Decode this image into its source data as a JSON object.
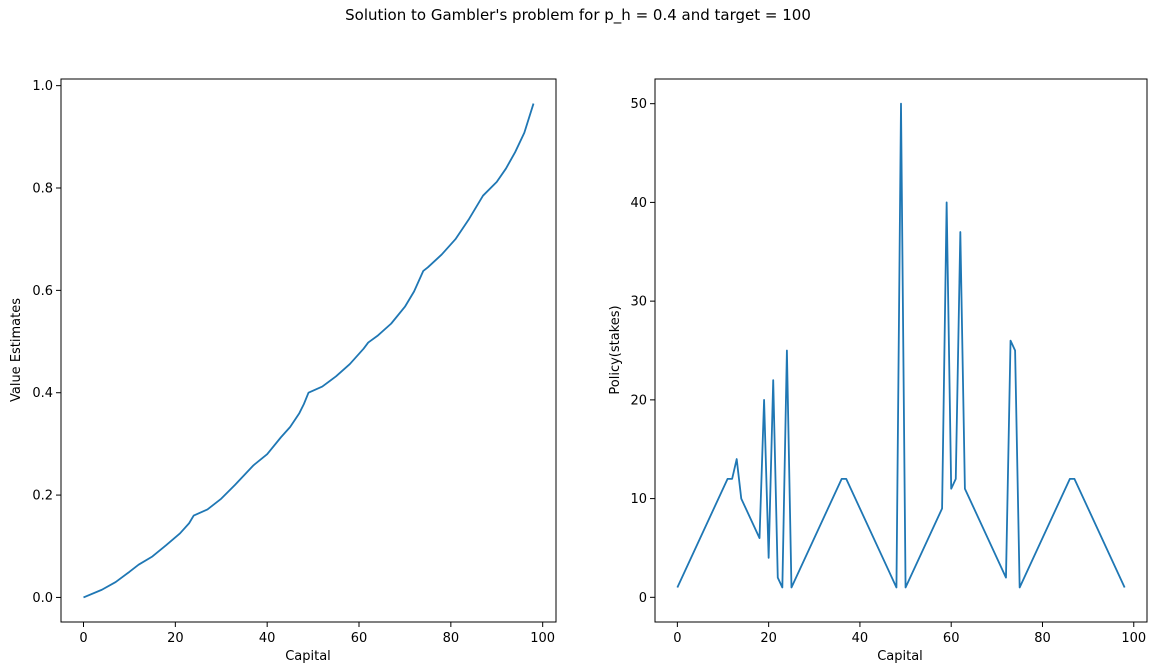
{
  "figure": {
    "suptitle": "Solution to Gambler's problem for p_h = 0.4 and target = 100"
  },
  "chart_data": [
    {
      "type": "line",
      "title": "",
      "xlabel": "Capital",
      "ylabel": "Value Estimates",
      "xlim": [
        -4.9,
        102.9
      ],
      "ylim": [
        -0.048,
        1.013
      ],
      "xticks": [
        0,
        20,
        40,
        60,
        80,
        100
      ],
      "yticks": [
        0.0,
        0.2,
        0.4,
        0.6,
        0.8,
        1.0
      ],
      "xtick_labels": [
        "0",
        "20",
        "40",
        "60",
        "80",
        "100"
      ],
      "ytick_labels": [
        "0.0",
        "0.2",
        "0.4",
        "0.6",
        "0.8",
        "1.0"
      ],
      "grid": false,
      "color": "#1f77b4",
      "x": [
        0,
        4,
        7,
        10,
        12,
        15,
        18,
        21,
        23,
        24,
        27,
        30,
        33,
        37,
        40,
        43,
        45,
        47,
        48,
        49,
        52,
        55,
        58,
        61,
        62,
        64,
        67,
        70,
        72,
        74,
        75,
        78,
        81,
        84,
        87,
        90,
        92,
        94,
        96,
        98
      ],
      "y": [
        0.0,
        0.015,
        0.03,
        0.05,
        0.064,
        0.08,
        0.102,
        0.125,
        0.145,
        0.16,
        0.172,
        0.193,
        0.22,
        0.258,
        0.28,
        0.313,
        0.333,
        0.36,
        0.378,
        0.4,
        0.412,
        0.432,
        0.456,
        0.486,
        0.498,
        0.511,
        0.535,
        0.568,
        0.598,
        0.638,
        0.645,
        0.67,
        0.7,
        0.74,
        0.785,
        0.812,
        0.838,
        0.87,
        0.908,
        0.965
      ]
    },
    {
      "type": "line",
      "title": "",
      "xlabel": "Capital",
      "ylabel": "Policy(stakes)",
      "xlim": [
        -4.9,
        102.9
      ],
      "ylim": [
        -2.5,
        52.5
      ],
      "xticks": [
        0,
        20,
        40,
        60,
        80,
        100
      ],
      "yticks": [
        0,
        10,
        20,
        30,
        40,
        50
      ],
      "xtick_labels": [
        "0",
        "20",
        "40",
        "60",
        "80",
        "100"
      ],
      "ytick_labels": [
        "0",
        "10",
        "20",
        "30",
        "40",
        "50"
      ],
      "grid": false,
      "color": "#1f77b4",
      "x": [
        0,
        11,
        12,
        13,
        14,
        18,
        19,
        20,
        21,
        22,
        23,
        24,
        25,
        36,
        37,
        48,
        49,
        50,
        58,
        59,
        60,
        61,
        62,
        63,
        72,
        73,
        74,
        75,
        86,
        87,
        98
      ],
      "y": [
        1,
        12,
        12,
        14,
        10,
        6,
        20,
        4,
        22,
        2,
        1,
        25,
        1,
        12,
        12,
        1,
        50,
        1,
        9,
        40,
        11,
        12,
        37,
        11,
        2,
        26,
        25,
        1,
        12,
        12,
        1
      ]
    }
  ]
}
